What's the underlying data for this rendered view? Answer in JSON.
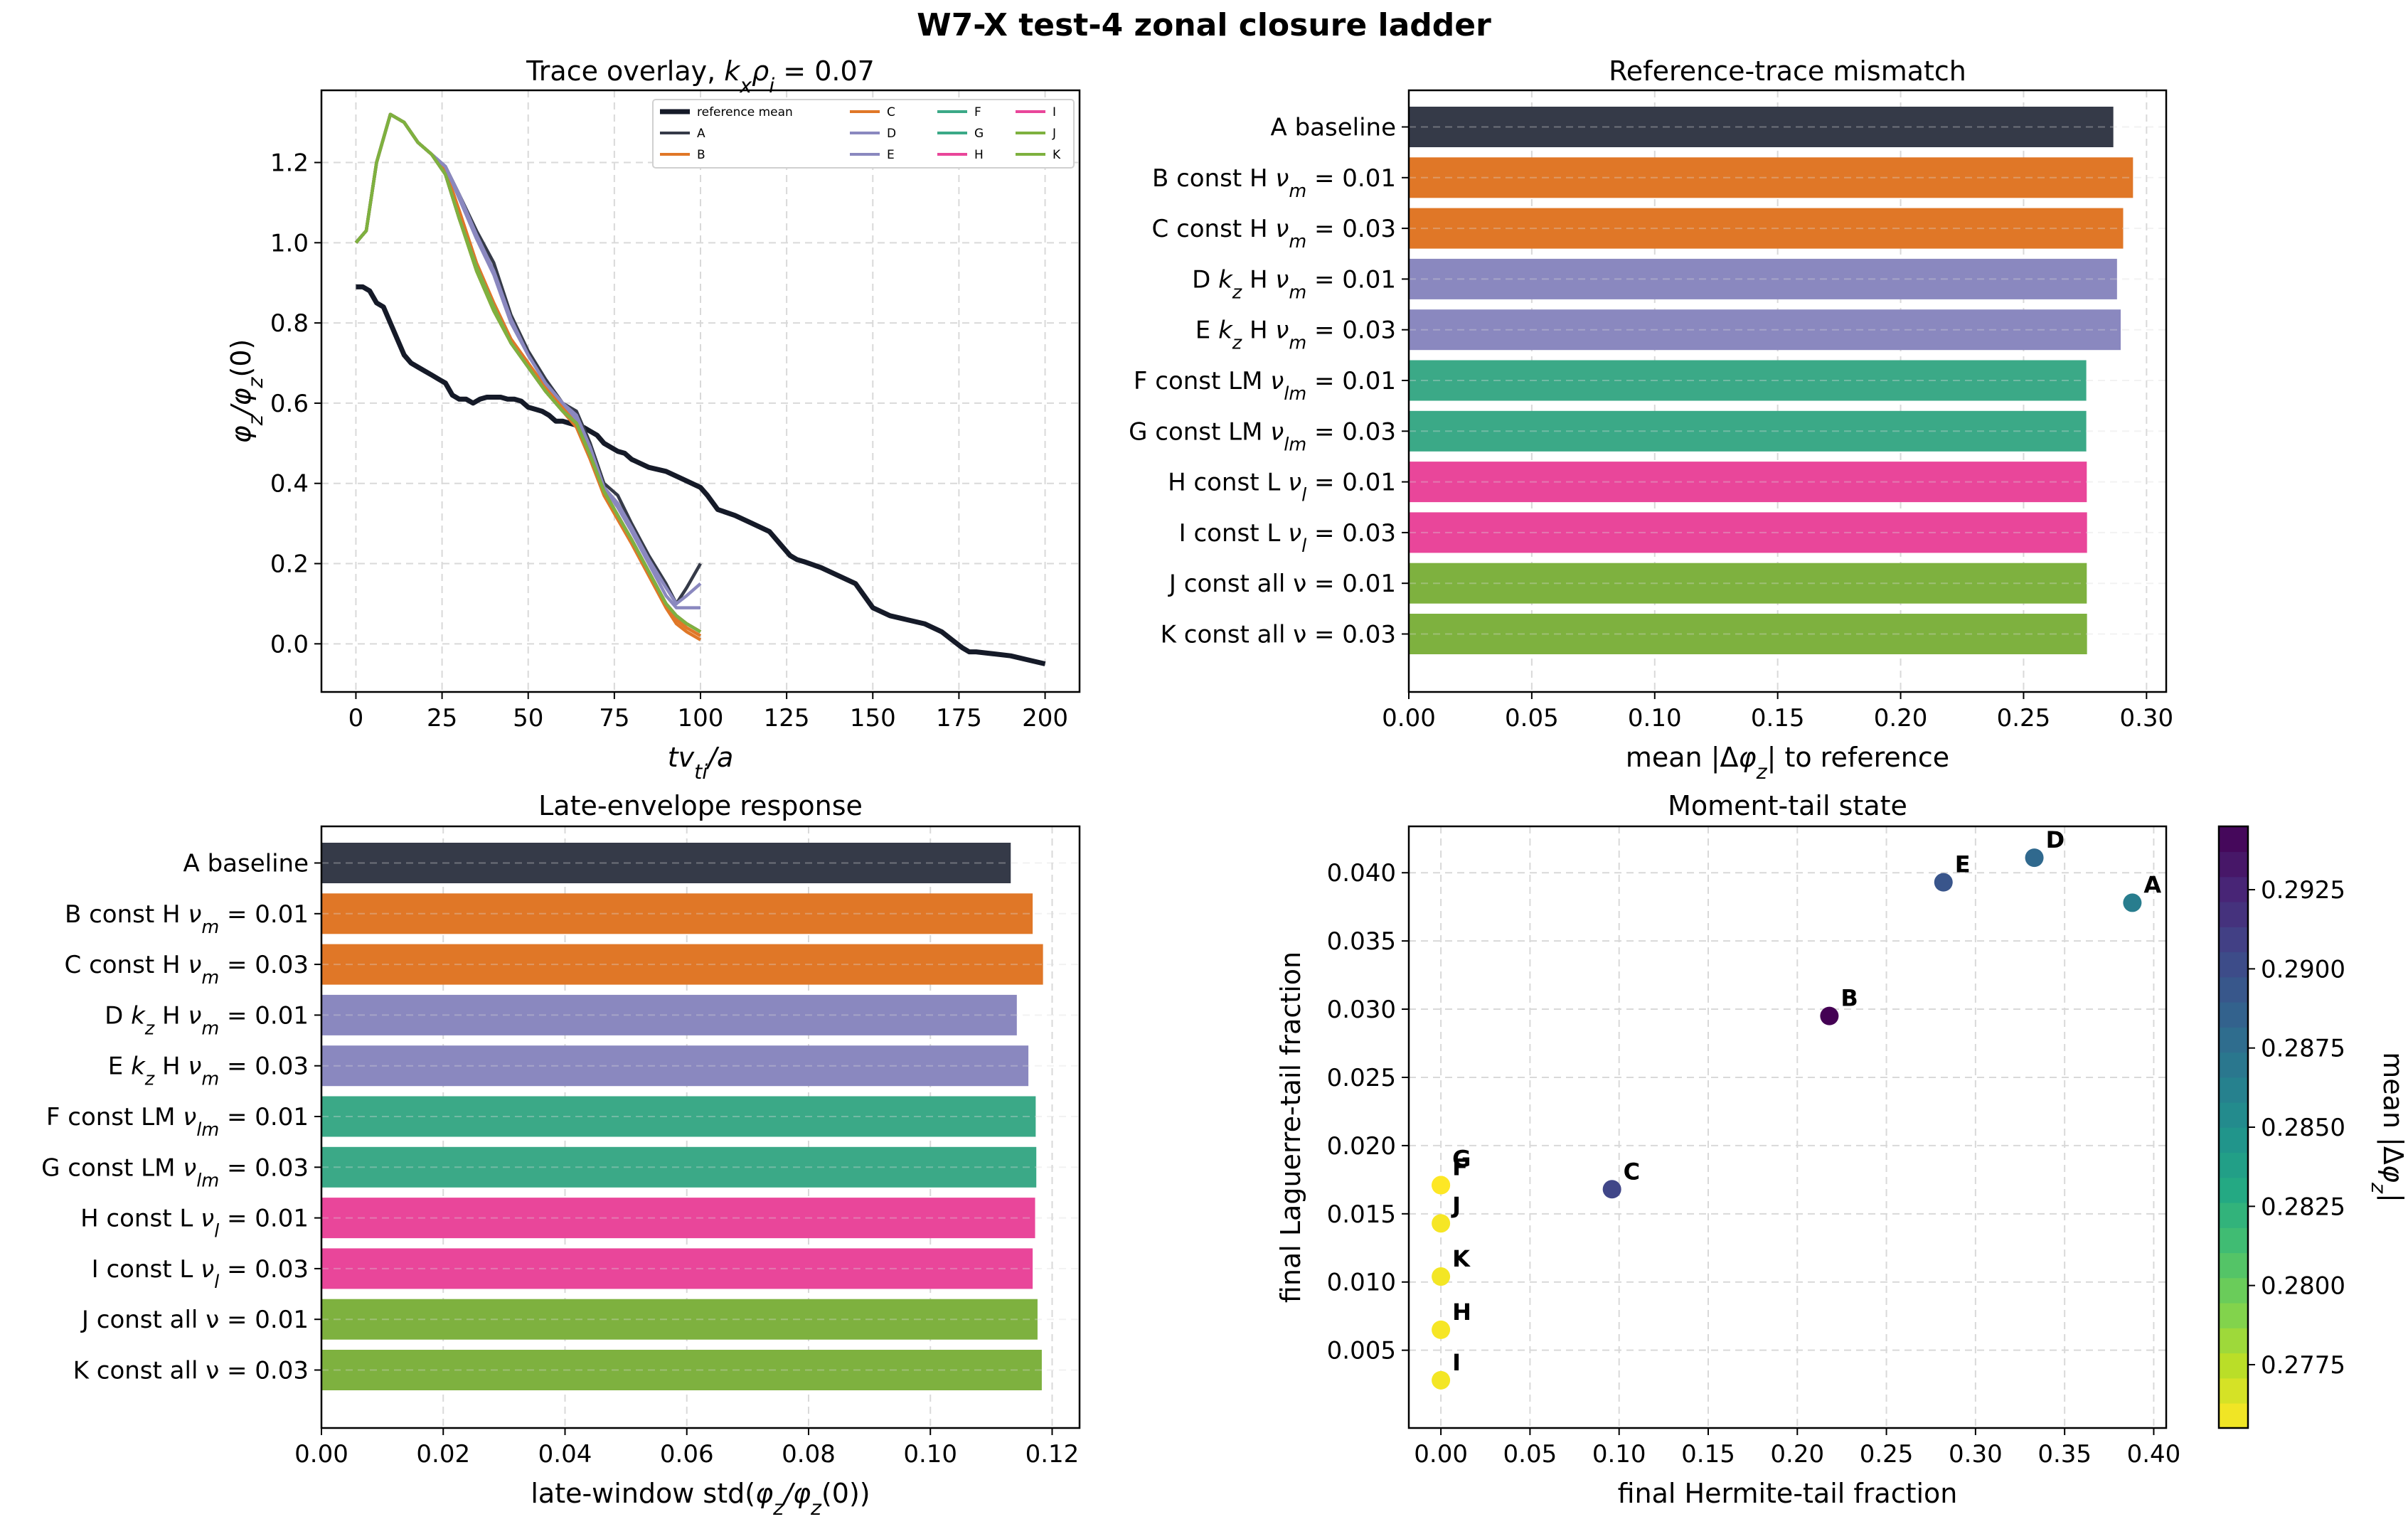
{
  "suptitle": "W7-X test-4 zonal closure ladder",
  "colors": {
    "reference": "#151a28",
    "A": "#353a48",
    "B": "#e07727",
    "C": "#e07727",
    "D": "#8a88bf",
    "E": "#8a88bf",
    "F": "#3ba987",
    "G": "#3ba987",
    "H": "#e9469a",
    "I": "#e9469a",
    "J": "#7eb13f",
    "K": "#7eb13f"
  },
  "chart_data": [
    {
      "type": "line",
      "title": "Trace overlay, k_x ρ_i = 0.07",
      "xlabel": "t v_ti / a",
      "ylabel": "φ_z / φ_z(0)",
      "xlim": [
        -10,
        210
      ],
      "ylim": [
        -0.12,
        1.38
      ],
      "xticks": [
        0,
        25,
        50,
        75,
        100,
        125,
        150,
        175,
        200
      ],
      "yticks": [
        0.0,
        0.2,
        0.4,
        0.6,
        0.8,
        1.0,
        1.2
      ],
      "grid": true,
      "legend_position": "top-right",
      "legend_columns": 4,
      "series": [
        {
          "name": "reference mean",
          "key": "reference",
          "x": [
            0,
            2,
            4,
            6,
            8,
            10,
            12,
            14,
            16,
            18,
            20,
            22,
            24,
            26,
            28,
            30,
            32,
            34,
            36,
            38,
            40,
            42,
            44,
            46,
            48,
            50,
            52,
            54,
            56,
            58,
            60,
            62,
            64,
            66,
            68,
            70,
            72,
            74,
            76,
            78,
            80,
            85,
            90,
            95,
            100,
            102,
            105,
            110,
            115,
            120,
            123,
            126,
            128,
            130,
            135,
            140,
            145,
            150,
            155,
            160,
            165,
            170,
            173,
            176,
            178,
            180,
            185,
            190,
            195,
            200
          ],
          "y": [
            0.89,
            0.89,
            0.88,
            0.85,
            0.84,
            0.8,
            0.76,
            0.72,
            0.7,
            0.69,
            0.68,
            0.67,
            0.66,
            0.65,
            0.62,
            0.61,
            0.61,
            0.6,
            0.61,
            0.615,
            0.615,
            0.615,
            0.61,
            0.61,
            0.605,
            0.59,
            0.585,
            0.58,
            0.57,
            0.555,
            0.555,
            0.55,
            0.545,
            0.54,
            0.53,
            0.52,
            0.5,
            0.49,
            0.48,
            0.475,
            0.46,
            0.44,
            0.43,
            0.41,
            0.39,
            0.37,
            0.335,
            0.32,
            0.3,
            0.28,
            0.25,
            0.22,
            0.21,
            0.205,
            0.19,
            0.17,
            0.15,
            0.09,
            0.07,
            0.06,
            0.05,
            0.03,
            0.01,
            -0.01,
            -0.02,
            -0.02,
            -0.025,
            -0.03,
            -0.04,
            -0.05
          ]
        },
        {
          "name": "A",
          "key": "A",
          "x": [
            0,
            3,
            6,
            10,
            14,
            18,
            22,
            26,
            30,
            35,
            40,
            45,
            50,
            55,
            60,
            64,
            68,
            72,
            76,
            80,
            85,
            90,
            93,
            96,
            100
          ],
          "y": [
            1.0,
            1.03,
            1.2,
            1.32,
            1.3,
            1.25,
            1.22,
            1.19,
            1.12,
            1.03,
            0.95,
            0.82,
            0.73,
            0.66,
            0.6,
            0.58,
            0.5,
            0.4,
            0.37,
            0.3,
            0.22,
            0.15,
            0.1,
            0.14,
            0.2
          ]
        },
        {
          "name": "B",
          "key": "B",
          "x": [
            0,
            3,
            6,
            10,
            14,
            18,
            22,
            26,
            30,
            35,
            40,
            45,
            50,
            55,
            60,
            64,
            68,
            72,
            76,
            80,
            85,
            90,
            93,
            96,
            100
          ],
          "y": [
            1.0,
            1.03,
            1.2,
            1.32,
            1.3,
            1.25,
            1.22,
            1.18,
            1.08,
            0.95,
            0.85,
            0.76,
            0.7,
            0.64,
            0.59,
            0.55,
            0.47,
            0.38,
            0.32,
            0.26,
            0.18,
            0.1,
            0.06,
            0.04,
            0.02
          ]
        },
        {
          "name": "C",
          "key": "C",
          "x": [
            0,
            3,
            6,
            10,
            14,
            18,
            22,
            26,
            30,
            35,
            40,
            45,
            50,
            55,
            60,
            64,
            68,
            72,
            76,
            80,
            85,
            90,
            93,
            96,
            100
          ],
          "y": [
            1.0,
            1.03,
            1.2,
            1.32,
            1.3,
            1.25,
            1.22,
            1.17,
            1.06,
            0.93,
            0.83,
            0.75,
            0.69,
            0.63,
            0.58,
            0.54,
            0.46,
            0.37,
            0.31,
            0.25,
            0.17,
            0.09,
            0.05,
            0.03,
            0.01
          ]
        },
        {
          "name": "D",
          "key": "D",
          "x": [
            0,
            3,
            6,
            10,
            14,
            18,
            22,
            26,
            30,
            35,
            40,
            45,
            50,
            55,
            60,
            64,
            68,
            72,
            76,
            80,
            85,
            90,
            93,
            96,
            100
          ],
          "y": [
            1.0,
            1.03,
            1.2,
            1.32,
            1.3,
            1.25,
            1.22,
            1.19,
            1.12,
            1.02,
            0.93,
            0.81,
            0.72,
            0.65,
            0.6,
            0.57,
            0.49,
            0.39,
            0.35,
            0.29,
            0.21,
            0.14,
            0.1,
            0.12,
            0.15
          ]
        },
        {
          "name": "E",
          "key": "E",
          "x": [
            0,
            3,
            6,
            10,
            14,
            18,
            22,
            26,
            30,
            35,
            40,
            45,
            50,
            55,
            60,
            64,
            68,
            72,
            76,
            80,
            85,
            90,
            93,
            96,
            100
          ],
          "y": [
            1.0,
            1.03,
            1.2,
            1.32,
            1.3,
            1.25,
            1.22,
            1.19,
            1.11,
            1.01,
            0.92,
            0.8,
            0.72,
            0.65,
            0.6,
            0.56,
            0.48,
            0.39,
            0.34,
            0.28,
            0.2,
            0.12,
            0.09,
            0.09,
            0.09
          ]
        },
        {
          "name": "F",
          "key": "F",
          "x": [
            0,
            3,
            6,
            10,
            14,
            18,
            22,
            26,
            30,
            35,
            40,
            45,
            50,
            55,
            60,
            64,
            68,
            72,
            76,
            80,
            85,
            90,
            93,
            96,
            100
          ],
          "y": [
            1.0,
            1.03,
            1.2,
            1.32,
            1.3,
            1.25,
            1.22,
            1.17,
            1.06,
            0.94,
            0.84,
            0.75,
            0.69,
            0.63,
            0.58,
            0.55,
            0.47,
            0.38,
            0.32,
            0.26,
            0.18,
            0.1,
            0.07,
            0.05,
            0.03
          ]
        },
        {
          "name": "G",
          "key": "G",
          "x": [
            0,
            3,
            6,
            10,
            14,
            18,
            22,
            26,
            30,
            35,
            40,
            45,
            50,
            55,
            60,
            64,
            68,
            72,
            76,
            80,
            85,
            90,
            93,
            96,
            100
          ],
          "y": [
            1.0,
            1.03,
            1.2,
            1.32,
            1.3,
            1.25,
            1.22,
            1.17,
            1.06,
            0.94,
            0.84,
            0.75,
            0.69,
            0.63,
            0.58,
            0.55,
            0.47,
            0.38,
            0.32,
            0.26,
            0.18,
            0.1,
            0.07,
            0.05,
            0.03
          ]
        },
        {
          "name": "H",
          "key": "H",
          "x": [
            0,
            3,
            6,
            10,
            14,
            18,
            22,
            26,
            30,
            35,
            40,
            45,
            50,
            55,
            60,
            64,
            68,
            72,
            76,
            80,
            85,
            90,
            93,
            96,
            100
          ],
          "y": [
            1.0,
            1.03,
            1.2,
            1.32,
            1.3,
            1.25,
            1.22,
            1.17,
            1.06,
            0.94,
            0.84,
            0.75,
            0.69,
            0.63,
            0.58,
            0.55,
            0.47,
            0.38,
            0.32,
            0.26,
            0.18,
            0.1,
            0.07,
            0.05,
            0.03
          ]
        },
        {
          "name": "I",
          "key": "I",
          "x": [
            0,
            3,
            6,
            10,
            14,
            18,
            22,
            26,
            30,
            35,
            40,
            45,
            50,
            55,
            60,
            64,
            68,
            72,
            76,
            80,
            85,
            90,
            93,
            96,
            100
          ],
          "y": [
            1.0,
            1.03,
            1.2,
            1.32,
            1.3,
            1.25,
            1.22,
            1.17,
            1.06,
            0.94,
            0.84,
            0.75,
            0.69,
            0.63,
            0.58,
            0.55,
            0.47,
            0.38,
            0.32,
            0.26,
            0.18,
            0.1,
            0.07,
            0.05,
            0.03
          ]
        },
        {
          "name": "J",
          "key": "J",
          "x": [
            0,
            3,
            6,
            10,
            14,
            18,
            22,
            26,
            30,
            35,
            40,
            45,
            50,
            55,
            60,
            64,
            68,
            72,
            76,
            80,
            85,
            90,
            93,
            96,
            100
          ],
          "y": [
            1.0,
            1.03,
            1.2,
            1.32,
            1.3,
            1.25,
            1.22,
            1.17,
            1.06,
            0.94,
            0.84,
            0.75,
            0.69,
            0.63,
            0.58,
            0.55,
            0.47,
            0.38,
            0.32,
            0.26,
            0.18,
            0.1,
            0.07,
            0.05,
            0.03
          ]
        },
        {
          "name": "K",
          "key": "K",
          "x": [
            0,
            3,
            6,
            10,
            14,
            18,
            22,
            26,
            30,
            35,
            40,
            45,
            50,
            55,
            60,
            64,
            68,
            72,
            76,
            80,
            85,
            90,
            93,
            96,
            100
          ],
          "y": [
            1.0,
            1.03,
            1.2,
            1.32,
            1.3,
            1.25,
            1.22,
            1.17,
            1.06,
            0.93,
            0.83,
            0.75,
            0.69,
            0.63,
            0.58,
            0.55,
            0.47,
            0.38,
            0.32,
            0.26,
            0.18,
            0.1,
            0.07,
            0.05,
            0.03
          ]
        }
      ]
    },
    {
      "type": "bar",
      "orientation": "horizontal",
      "title": "Reference-trace mismatch",
      "xlabel": "mean |Δφ_z| to reference",
      "xlim": [
        0,
        0.308
      ],
      "xticks": [
        0.0,
        0.05,
        0.1,
        0.15,
        0.2,
        0.25,
        0.3
      ],
      "grid": true,
      "categories": [
        "A  baseline",
        "B  const H ν_m = 0.01",
        "C  const H ν_m = 0.03",
        "D  k_z H ν_m = 0.01",
        "E  k_z H ν_m = 0.03",
        "F  const LM ν_lm = 0.01",
        "G  const LM ν_lm = 0.03",
        "H  const L ν_l = 0.01",
        "I  const L ν_l = 0.03",
        "J  const all ν = 0.01",
        "K  const all ν = 0.03"
      ],
      "keys": [
        "A",
        "B",
        "C",
        "D",
        "E",
        "F",
        "G",
        "H",
        "I",
        "J",
        "K"
      ],
      "values": [
        0.2865,
        0.2945,
        0.2905,
        0.288,
        0.2895,
        0.2755,
        0.2755,
        0.2757,
        0.2758,
        0.2757,
        0.2758
      ]
    },
    {
      "type": "bar",
      "orientation": "horizontal",
      "title": "Late-envelope response",
      "xlabel": "late-window std(φ_z/φ_z(0))",
      "xlim": [
        0,
        0.1245
      ],
      "xticks": [
        0.0,
        0.02,
        0.04,
        0.06,
        0.08,
        0.1,
        0.12
      ],
      "grid": true,
      "categories": [
        "A  baseline",
        "B  const H ν_m = 0.01",
        "C  const H ν_m = 0.03",
        "D  k_z H ν_m = 0.01",
        "E  k_z H ν_m = 0.03",
        "F  const LM ν_lm = 0.01",
        "G  const LM ν_lm = 0.03",
        "H  const L ν_l = 0.01",
        "I  const L ν_l = 0.03",
        "J  const all ν = 0.01",
        "K  const all ν = 0.03"
      ],
      "keys": [
        "A",
        "B",
        "C",
        "D",
        "E",
        "F",
        "G",
        "H",
        "I",
        "J",
        "K"
      ],
      "values": [
        0.1132,
        0.1168,
        0.1185,
        0.1142,
        0.1161,
        0.1173,
        0.1174,
        0.1172,
        0.1168,
        0.1176,
        0.1183
      ]
    },
    {
      "type": "scatter",
      "title": "Moment-tail state",
      "xlabel": "final Hermite-tail fraction",
      "ylabel": "final Laguerre-tail fraction",
      "xlim": [
        -0.018,
        0.407
      ],
      "ylim": [
        -0.0007,
        0.0434
      ],
      "xticks": [
        0.0,
        0.05,
        0.1,
        0.15,
        0.2,
        0.25,
        0.3,
        0.35,
        0.4
      ],
      "yticks": [
        0.005,
        0.01,
        0.015,
        0.02,
        0.025,
        0.03,
        0.035,
        0.04
      ],
      "grid": true,
      "colorbar": {
        "label": "mean |Δφ_z|",
        "colormap": "viridis_r",
        "range": [
          0.2755,
          0.2945
        ],
        "ticks": [
          0.2775,
          0.28,
          0.2825,
          0.285,
          0.2875,
          0.29,
          0.2925
        ]
      },
      "points": [
        {
          "label": "A",
          "x": 0.388,
          "y": 0.0378,
          "c": 0.2865
        },
        {
          "label": "B",
          "x": 0.218,
          "y": 0.0295,
          "c": 0.2945
        },
        {
          "label": "C",
          "x": 0.096,
          "y": 0.0168,
          "c": 0.2905
        },
        {
          "label": "D",
          "x": 0.333,
          "y": 0.0411,
          "c": 0.288
        },
        {
          "label": "E",
          "x": 0.282,
          "y": 0.0393,
          "c": 0.2895
        },
        {
          "label": "F",
          "x": 0.0,
          "y": 0.0171,
          "c": 0.2755
        },
        {
          "label": "G",
          "x": 0.0,
          "y": 0.0171,
          "c": 0.2755
        },
        {
          "label": "H",
          "x": 0.0,
          "y": 0.0065,
          "c": 0.2757
        },
        {
          "label": "I",
          "x": 0.0,
          "y": 0.0028,
          "c": 0.2758
        },
        {
          "label": "J",
          "x": 0.0,
          "y": 0.0143,
          "c": 0.2757
        },
        {
          "label": "K",
          "x": 0.0,
          "y": 0.0104,
          "c": 0.2758
        }
      ]
    }
  ]
}
